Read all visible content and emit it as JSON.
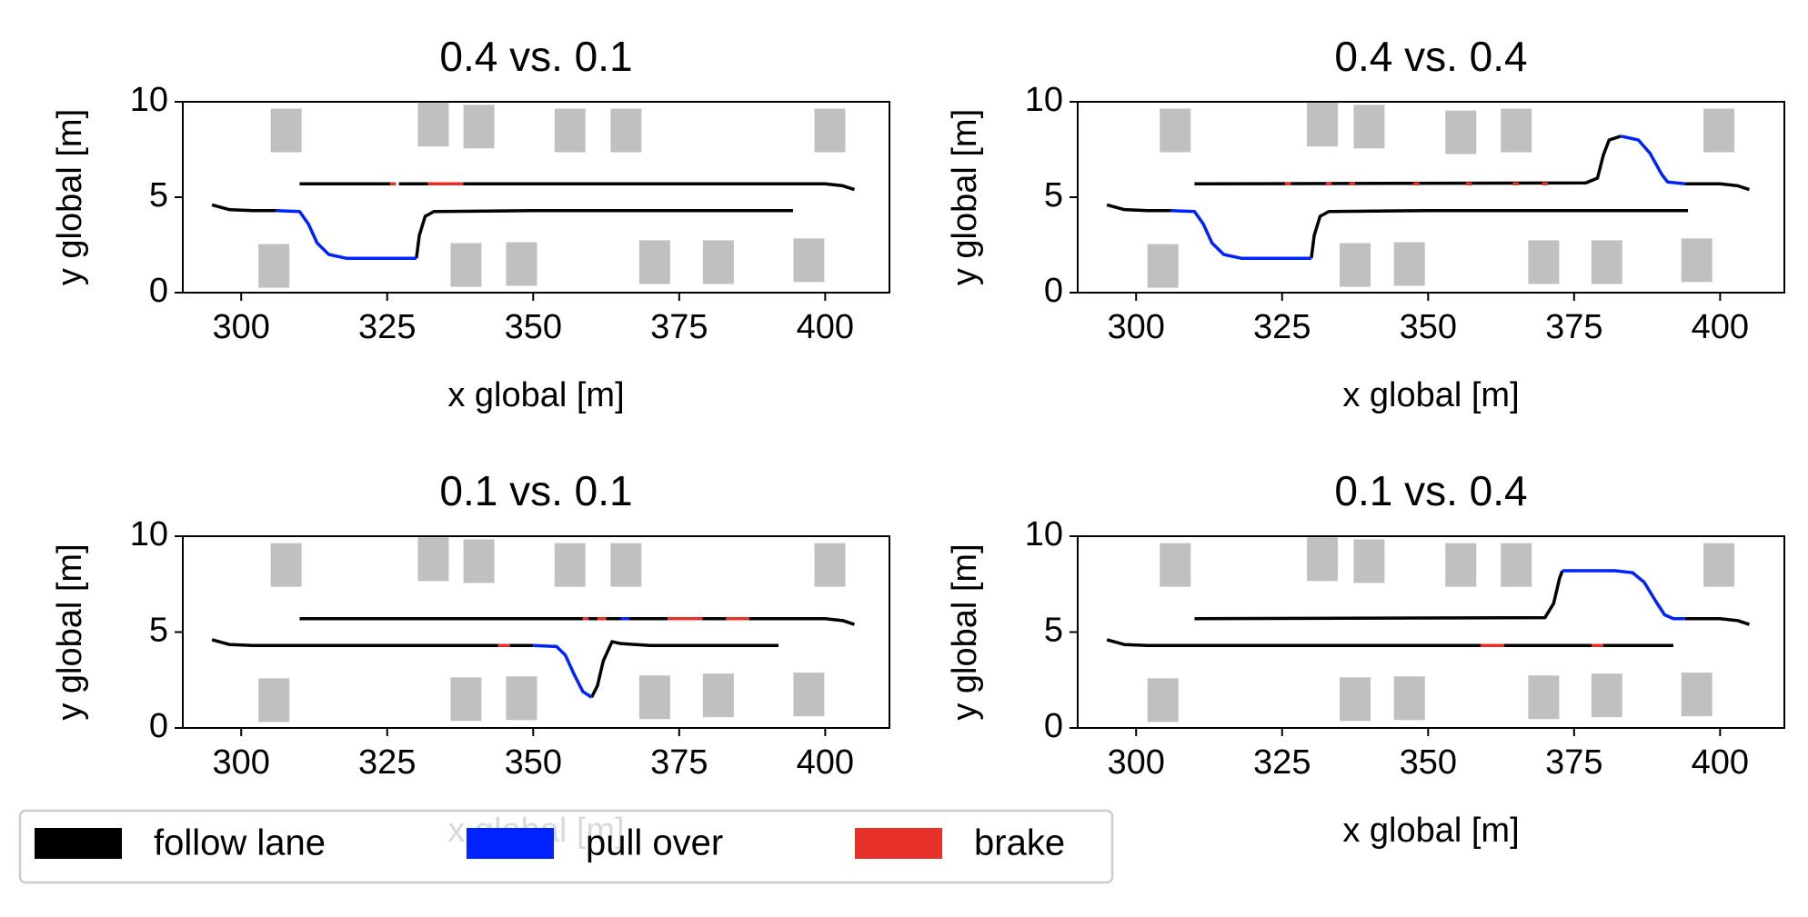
{
  "chart_data": [
    {
      "type": "line",
      "title": "0.4 vs. 0.1",
      "xlabel": "x global [m]",
      "ylabel": "y global [m]",
      "xlim": [
        290,
        411
      ],
      "ylim": [
        0,
        10
      ],
      "xticks": [
        300,
        325,
        350,
        375,
        400
      ],
      "yticks": [
        0,
        5,
        10
      ],
      "obstacles": {
        "color": "#c0c0c0",
        "x": [
          307.7,
          332.9,
          340.7,
          356.3,
          365.9,
          400.8,
          305.6,
          338.5,
          348.0,
          370.8,
          381.7,
          397.2
        ],
        "y": [
          8.5,
          8.8,
          8.7,
          8.5,
          8.5,
          8.5,
          1.4,
          1.45,
          1.5,
          1.6,
          1.6,
          1.7
        ]
      },
      "series": [
        {
          "name": "follow lane",
          "color": "#000000",
          "x": [
            295,
            298,
            302,
            306,
            null,
            330,
            330.5,
            331.5,
            333,
            350,
            394.5,
            null,
            310,
            326,
            null,
            327,
            332,
            null,
            338,
            380,
            400,
            403,
            405
          ],
          "y": [
            4.6,
            4.35,
            4.3,
            4.3,
            null,
            1.8,
            3.0,
            4.0,
            4.25,
            4.3,
            4.3,
            null,
            5.7,
            5.7,
            null,
            5.7,
            5.7,
            null,
            5.7,
            5.7,
            5.7,
            5.6,
            5.4
          ]
        },
        {
          "name": "pull over",
          "color": "#0022ff",
          "x": [
            306,
            310,
            311.5,
            313,
            315,
            318,
            330
          ],
          "y": [
            4.3,
            4.25,
            3.6,
            2.6,
            2.0,
            1.8,
            1.8
          ]
        },
        {
          "name": "brake",
          "color": "#e8302a",
          "x": [
            325.5,
            326.5,
            null,
            332,
            338
          ],
          "y": [
            5.7,
            5.7,
            null,
            5.7,
            5.7
          ]
        }
      ]
    },
    {
      "type": "line",
      "title": "0.4 vs. 0.4",
      "xlabel": "x global [m]",
      "ylabel": "y global [m]",
      "xlim": [
        290,
        411
      ],
      "ylim": [
        0,
        10
      ],
      "xticks": [
        300,
        325,
        350,
        375,
        400
      ],
      "yticks": [
        0,
        5,
        10
      ],
      "obstacles": {
        "color": "#c0c0c0",
        "x": [
          306.7,
          331.9,
          339.9,
          355.6,
          365.1,
          399.8,
          304.6,
          337.5,
          346.8,
          369.8,
          380.6,
          396.0
        ],
        "y": [
          8.5,
          8.8,
          8.7,
          8.4,
          8.5,
          8.5,
          1.4,
          1.45,
          1.5,
          1.6,
          1.6,
          1.7
        ]
      },
      "series": [
        {
          "name": "follow lane",
          "color": "#000000",
          "x": [
            295,
            298,
            302,
            306,
            null,
            330,
            330.5,
            331.5,
            333,
            350,
            394.5,
            null,
            310,
            377,
            379,
            380,
            381,
            383,
            null,
            394,
            400,
            403,
            405
          ],
          "y": [
            4.6,
            4.35,
            4.3,
            4.3,
            null,
            1.8,
            3.0,
            4.0,
            4.25,
            4.3,
            4.3,
            null,
            5.7,
            5.75,
            6.0,
            7.2,
            8.0,
            8.2,
            null,
            5.7,
            5.7,
            5.6,
            5.4
          ]
        },
        {
          "name": "pull over",
          "color": "#0022ff",
          "x": [
            306,
            310,
            311.5,
            313,
            315,
            318,
            330,
            null,
            383,
            386,
            388,
            390,
            391,
            394
          ],
          "y": [
            4.3,
            4.25,
            3.6,
            2.6,
            2.0,
            1.8,
            1.8,
            null,
            8.2,
            8.0,
            7.3,
            6.2,
            5.8,
            5.7
          ]
        },
        {
          "name": "brake",
          "color": "#e8302a",
          "x": [
            325.5,
            326.5,
            null,
            332.5,
            333.5,
            null,
            336.5,
            337.5,
            null,
            347.5,
            348.5,
            null,
            356.5,
            357.5,
            null,
            364.5,
            365.5,
            null,
            369.5,
            370.5
          ],
          "y": [
            5.7,
            5.7,
            null,
            5.7,
            5.7,
            null,
            5.7,
            5.7,
            null,
            5.7,
            5.7,
            null,
            5.7,
            5.7,
            null,
            5.7,
            5.7,
            null,
            5.7,
            5.7
          ]
        }
      ]
    },
    {
      "type": "line",
      "title": "0.1 vs. 0.1",
      "xlabel": "x global [m]",
      "ylabel": "y global [m]",
      "xlim": [
        290,
        411
      ],
      "ylim": [
        0,
        10
      ],
      "xticks": [
        300,
        325,
        350,
        375,
        400
      ],
      "yticks": [
        0,
        5,
        10
      ],
      "obstacles": {
        "color": "#c0c0c0",
        "x": [
          307.7,
          332.9,
          340.7,
          356.3,
          365.9,
          400.8,
          305.6,
          338.5,
          348.0,
          370.8,
          381.7,
          397.2
        ],
        "y": [
          8.5,
          8.8,
          8.7,
          8.5,
          8.5,
          8.5,
          1.45,
          1.5,
          1.55,
          1.6,
          1.7,
          1.75
        ]
      },
      "series": [
        {
          "name": "follow lane",
          "color": "#000000",
          "x": [
            295,
            298,
            302,
            344,
            null,
            346,
            350,
            null,
            360,
            361,
            362,
            363.5,
            365,
            370,
            392,
            null,
            310,
            400,
            403,
            405
          ],
          "y": [
            4.6,
            4.35,
            4.3,
            4.3,
            null,
            4.3,
            4.3,
            null,
            1.6,
            2.2,
            3.5,
            4.5,
            4.4,
            4.3,
            4.3,
            null,
            5.7,
            5.7,
            5.6,
            5.4
          ]
        },
        {
          "name": "pull over",
          "color": "#0022ff",
          "x": [
            350,
            354,
            355.5,
            357,
            358.5,
            360,
            null,
            365,
            366.5
          ],
          "y": [
            4.3,
            4.25,
            3.8,
            2.8,
            1.9,
            1.6,
            null,
            5.7,
            5.7
          ]
        },
        {
          "name": "brake",
          "color": "#e8302a",
          "x": [
            344,
            346,
            null,
            358.5,
            359.5,
            null,
            361,
            362.5,
            null,
            373,
            379,
            null,
            383,
            387
          ],
          "y": [
            4.3,
            4.3,
            null,
            5.7,
            5.7,
            null,
            5.7,
            5.7,
            null,
            5.7,
            5.7,
            null,
            5.7,
            5.7
          ]
        }
      ]
    },
    {
      "type": "line",
      "title": "0.1 vs. 0.4",
      "xlabel": "x global [m]",
      "ylabel": "y global [m]",
      "xlim": [
        290,
        411
      ],
      "ylim": [
        0,
        10
      ],
      "xticks": [
        300,
        325,
        350,
        375,
        400
      ],
      "yticks": [
        0,
        5,
        10
      ],
      "obstacles": {
        "color": "#c0c0c0",
        "x": [
          306.7,
          331.9,
          339.9,
          355.6,
          365.1,
          399.8,
          304.6,
          337.5,
          346.8,
          369.8,
          380.6,
          396.0
        ],
        "y": [
          8.5,
          8.8,
          8.7,
          8.5,
          8.5,
          8.5,
          1.45,
          1.5,
          1.55,
          1.6,
          1.7,
          1.75
        ]
      },
      "series": [
        {
          "name": "follow lane",
          "color": "#000000",
          "x": [
            295,
            298,
            302,
            392,
            null,
            310,
            370,
            371.5,
            372.5,
            373,
            null,
            394,
            400,
            403,
            405
          ],
          "y": [
            4.6,
            4.35,
            4.3,
            4.3,
            null,
            5.7,
            5.75,
            6.5,
            7.8,
            8.2,
            null,
            5.7,
            5.7,
            5.6,
            5.4
          ]
        },
        {
          "name": "pull over",
          "color": "#0022ff",
          "x": [
            373,
            382,
            385,
            387,
            389,
            390.5,
            392,
            394
          ],
          "y": [
            8.2,
            8.2,
            8.1,
            7.6,
            6.6,
            5.9,
            5.7,
            5.7
          ]
        },
        {
          "name": "brake",
          "color": "#e8302a",
          "x": [
            359,
            363,
            null,
            378,
            380
          ],
          "y": [
            4.3,
            4.3,
            null,
            4.3,
            4.3
          ]
        }
      ]
    }
  ]
}
